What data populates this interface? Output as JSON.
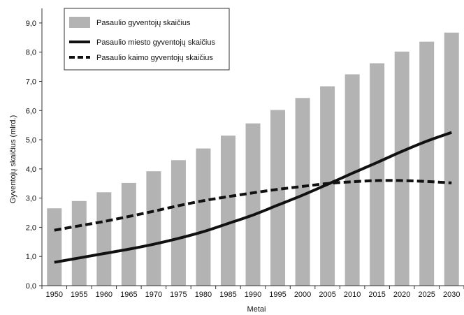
{
  "chart_data": {
    "type": "bar",
    "categories": [
      "1950",
      "1955",
      "1960",
      "1965",
      "1970",
      "1975",
      "1980",
      "1985",
      "1990",
      "1995",
      "2000",
      "2005",
      "2010",
      "2015",
      "2020",
      "2025",
      "2030"
    ],
    "series": [
      {
        "name": "Pasaulio gyventojų skaičius",
        "kind": "bar",
        "values": [
          2.65,
          2.9,
          3.2,
          3.52,
          3.92,
          4.3,
          4.7,
          5.14,
          5.56,
          6.02,
          6.43,
          6.83,
          7.24,
          7.62,
          8.02,
          8.36,
          8.67
        ]
      },
      {
        "name": "Pasaulio miesto gyventojų skaičius",
        "kind": "line",
        "style": "solid",
        "values": [
          0.8,
          0.95,
          1.1,
          1.25,
          1.42,
          1.62,
          1.85,
          2.13,
          2.42,
          2.76,
          3.1,
          3.47,
          3.85,
          4.22,
          4.6,
          4.95,
          5.25
        ]
      },
      {
        "name": "Pasaulio kaimo gyventojų skaičius",
        "kind": "line",
        "style": "dashed",
        "values": [
          1.9,
          2.05,
          2.2,
          2.37,
          2.55,
          2.74,
          2.91,
          3.05,
          3.18,
          3.3,
          3.4,
          3.5,
          3.56,
          3.6,
          3.6,
          3.57,
          3.52
        ]
      }
    ],
    "yticks": [
      "0,0",
      "1,0",
      "2,0",
      "3,0",
      "4,0",
      "5,0",
      "6,0",
      "7,0",
      "8,0",
      "9,0"
    ],
    "ylim": [
      0,
      9.5
    ],
    "xlabel": "Metai",
    "ylabel": "Gyventojų skaičius (mlrd.)",
    "legend_position": "top-left",
    "grid": false,
    "colors": {
      "bar": "#b3b3b3",
      "line": "#111111",
      "axis": "#333333"
    }
  }
}
